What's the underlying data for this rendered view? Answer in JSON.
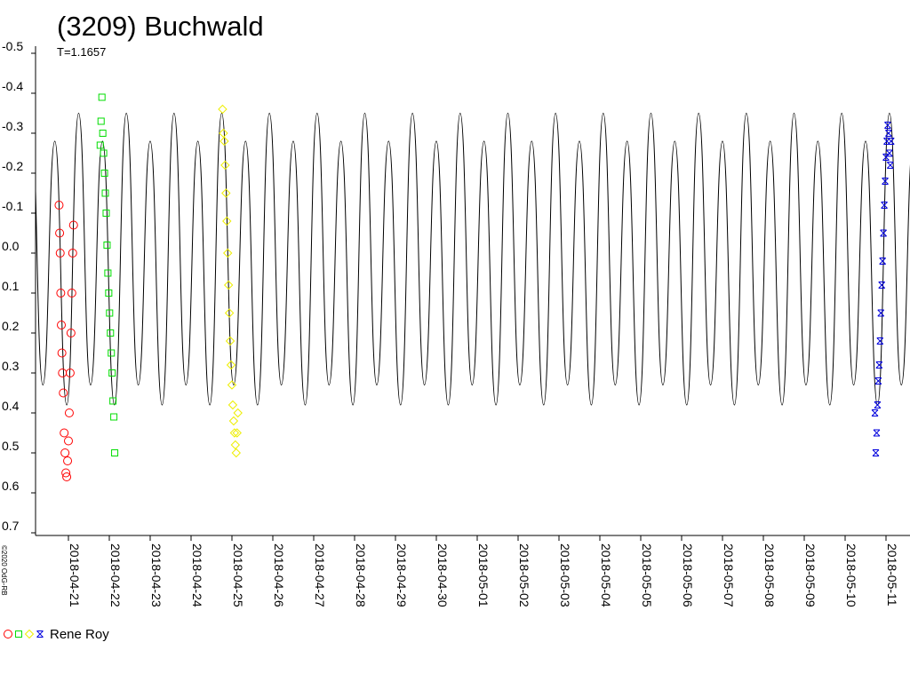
{
  "chart_data": {
    "type": "lightcurve",
    "title": "(3209) Buchwald",
    "subtitle": "T=1.1657",
    "copyright": "©2020 OdG-RB",
    "legend_label": "Rene Roy",
    "y_inverted": true,
    "ylim": [
      -0.5,
      0.7
    ],
    "yticks": [
      -0.5,
      -0.4,
      -0.3,
      -0.2,
      -0.1,
      {
        "value": 0,
        "label": "0.0"
      },
      0.1,
      0.2,
      0.3,
      0.4,
      0.5,
      0.6,
      0.7
    ],
    "xlim": [
      "2018-04-20",
      "2018-05-12"
    ],
    "xticks": [
      "2018-04-21",
      "2018-04-22",
      "2018-04-23",
      "2018-04-24",
      "2018-04-25",
      "2018-04-26",
      "2018-04-27",
      "2018-04-28",
      "2018-04-29",
      "2018-04-30",
      "2018-05-01",
      "2018-05-02",
      "2018-05-03",
      "2018-05-04",
      "2018-05-05",
      "2018-05-06",
      "2018-05-07",
      "2018-05-08",
      "2018-05-09",
      "2018-05-10",
      "2018-05-11"
    ],
    "model": {
      "color": "#000000",
      "x": [
        "2018-04-20T02:00",
        "2018-04-20T09:00",
        "2018-04-20T16:00",
        "2018-04-20T23:00",
        "2018-04-21T06:00",
        "2018-04-21T13:00",
        "2018-04-21T20:00",
        "2018-04-22T03:00",
        "2018-04-22T10:00",
        "2018-04-22T17:00",
        "2018-04-23T00:00",
        "2018-04-23T07:00",
        "2018-04-23T14:00",
        "2018-04-23T21:00",
        "2018-04-24T04:00",
        "2018-04-24T11:00",
        "2018-04-24T18:00",
        "2018-04-25T01:00",
        "2018-04-25T08:00",
        "2018-04-25T15:00",
        "2018-04-25T22:00",
        "2018-04-26T05:00",
        "2018-04-26T12:00",
        "2018-04-26T19:00",
        "2018-04-27T02:00",
        "2018-04-27T09:00",
        "2018-04-27T16:00",
        "2018-04-27T23:00",
        "2018-04-28T06:00",
        "2018-04-28T13:00",
        "2018-04-28T20:00",
        "2018-04-29T03:00",
        "2018-04-29T10:00",
        "2018-04-29T17:00",
        "2018-04-30T00:00",
        "2018-04-30T07:00",
        "2018-04-30T14:00",
        "2018-04-30T21:00",
        "2018-05-01T04:00",
        "2018-05-01T11:00",
        "2018-05-01T18:00",
        "2018-05-02T01:00",
        "2018-05-02T08:00",
        "2018-05-02T15:00",
        "2018-05-02T22:00",
        "2018-05-03T05:00",
        "2018-05-03T12:00",
        "2018-05-03T19:00",
        "2018-05-04T02:00",
        "2018-05-04T09:00",
        "2018-05-04T16:00",
        "2018-05-04T23:00",
        "2018-05-05T06:00",
        "2018-05-05T13:00",
        "2018-05-05T20:00",
        "2018-05-06T03:00",
        "2018-05-06T10:00",
        "2018-05-06T17:00",
        "2018-05-07T00:00",
        "2018-05-07T07:00",
        "2018-05-07T14:00",
        "2018-05-07T21:00",
        "2018-05-08T04:00",
        "2018-05-08T11:00",
        "2018-05-08T18:00",
        "2018-05-09T01:00",
        "2018-05-09T08:00",
        "2018-05-09T15:00",
        "2018-05-09T22:00",
        "2018-05-10T05:00",
        "2018-05-10T12:00",
        "2018-05-10T19:00",
        "2018-05-11T02:00",
        "2018-05-11T09:00",
        "2018-05-11T16:00"
      ],
      "values": [
        -0.35,
        0.33,
        -0.28,
        0.38,
        -0.35,
        0.33,
        -0.28,
        0.38,
        -0.35,
        0.33,
        -0.28,
        0.38,
        -0.35,
        0.33,
        -0.28,
        0.38,
        -0.35,
        0.33,
        -0.28,
        0.38,
        -0.35,
        0.33,
        -0.28,
        0.38,
        -0.35,
        0.33,
        -0.28,
        0.38,
        -0.35,
        0.33,
        -0.28,
        0.38,
        -0.35,
        0.33,
        -0.28,
        0.38,
        -0.35,
        0.33,
        -0.28,
        0.38,
        -0.35,
        0.33,
        -0.28,
        0.38,
        -0.35,
        0.33,
        -0.28,
        0.38,
        -0.35,
        0.33,
        -0.28,
        0.38,
        -0.35,
        0.33,
        -0.28,
        0.38,
        -0.35,
        0.33,
        -0.28,
        0.38,
        -0.35,
        0.33,
        -0.28,
        0.38,
        -0.35,
        0.33,
        -0.28,
        0.38,
        -0.35,
        0.33,
        -0.28,
        0.38,
        -0.35,
        0.33,
        -0.28
      ]
    },
    "series": [
      {
        "color": "#ff0000",
        "marker": "circle",
        "x": [
          "2018-04-20T18:30",
          "2018-04-20T18:50",
          "2018-04-20T19:10",
          "2018-04-20T19:30",
          "2018-04-20T19:50",
          "2018-04-20T20:10",
          "2018-04-20T20:30",
          "2018-04-20T21:00",
          "2018-04-20T21:30",
          "2018-04-20T22:00",
          "2018-04-20T22:30",
          "2018-04-20T23:00",
          "2018-04-20T23:30",
          "2018-04-21T00:00",
          "2018-04-21T00:30",
          "2018-04-21T01:00",
          "2018-04-21T01:30",
          "2018-04-21T02:00",
          "2018-04-21T02:30",
          "2018-04-21T03:00"
        ],
        "values": [
          -0.12,
          -0.05,
          0.0,
          0.1,
          0.18,
          0.25,
          0.3,
          0.35,
          0.45,
          0.5,
          0.55,
          0.56,
          0.52,
          0.47,
          0.4,
          0.3,
          0.2,
          0.1,
          0.0,
          -0.07
        ]
      },
      {
        "color": "#00dd00",
        "marker": "square",
        "x": [
          "2018-04-21T18:40",
          "2018-04-21T19:10",
          "2018-04-21T19:40",
          "2018-04-21T20:10",
          "2018-04-21T20:40",
          "2018-04-21T21:10",
          "2018-04-21T21:40",
          "2018-04-21T22:10",
          "2018-04-21T22:40",
          "2018-04-21T23:10",
          "2018-04-21T23:40",
          "2018-04-22T00:10",
          "2018-04-22T00:40",
          "2018-04-22T01:10",
          "2018-04-22T01:40",
          "2018-04-22T02:10",
          "2018-04-22T02:40",
          "2018-04-22T03:10"
        ],
        "values": [
          -0.27,
          -0.33,
          -0.39,
          -0.3,
          -0.25,
          -0.2,
          -0.15,
          -0.1,
          -0.02,
          0.05,
          0.1,
          0.15,
          0.2,
          0.25,
          0.3,
          0.37,
          0.41,
          0.5
        ]
      },
      {
        "color": "#eeee00",
        "marker": "diamond",
        "x": [
          "2018-04-24T18:30",
          "2018-04-24T19:00",
          "2018-04-24T19:30",
          "2018-04-24T20:00",
          "2018-04-24T20:30",
          "2018-04-24T21:00",
          "2018-04-24T21:30",
          "2018-04-24T22:00",
          "2018-04-24T22:30",
          "2018-04-24T23:00",
          "2018-04-24T23:30",
          "2018-04-25T00:00",
          "2018-04-25T00:30",
          "2018-04-25T01:00",
          "2018-04-25T01:30",
          "2018-04-25T02:00",
          "2018-04-25T02:30",
          "2018-04-25T03:00",
          "2018-04-25T03:30"
        ],
        "values": [
          -0.36,
          -0.3,
          -0.28,
          -0.22,
          -0.15,
          -0.08,
          0.0,
          0.08,
          0.15,
          0.22,
          0.28,
          0.33,
          0.38,
          0.42,
          0.45,
          0.48,
          0.5,
          0.45,
          0.4
        ]
      },
      {
        "color": "#0000dd",
        "marker": "x",
        "x": [
          "2018-05-10T17:30",
          "2018-05-10T18:00",
          "2018-05-10T18:30",
          "2018-05-10T19:00",
          "2018-05-10T19:30",
          "2018-05-10T20:00",
          "2018-05-10T20:30",
          "2018-05-10T21:00",
          "2018-05-10T21:30",
          "2018-05-10T22:00",
          "2018-05-10T22:30",
          "2018-05-10T23:00",
          "2018-05-10T23:30",
          "2018-05-11T00:00",
          "2018-05-11T00:30",
          "2018-05-11T01:00",
          "2018-05-11T01:30",
          "2018-05-11T02:00",
          "2018-05-11T02:30",
          "2018-05-11T03:00"
        ],
        "values": [
          0.4,
          0.5,
          0.45,
          0.38,
          0.32,
          0.28,
          0.22,
          0.15,
          0.08,
          0.02,
          -0.05,
          -0.12,
          -0.18,
          -0.24,
          -0.28,
          -0.32,
          -0.3,
          -0.25,
          -0.22,
          -0.28
        ]
      }
    ]
  }
}
